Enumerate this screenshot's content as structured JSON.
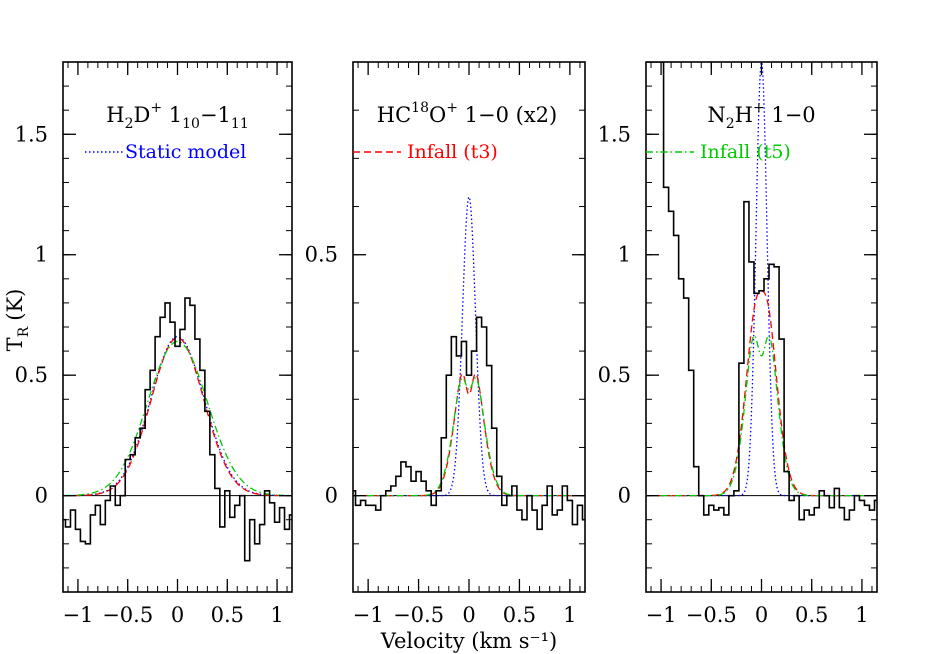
{
  "figure": {
    "xlabel": "Velocity (km s⁻¹)",
    "ylabel": "T",
    "ylabel_sub": "R",
    "ylabel_unit": "(K)"
  },
  "chart_data": [
    {
      "type": "line",
      "title_parts": {
        "a": "H",
        "b": "2",
        "c": "D",
        "d": "+",
        "e": "  1",
        "f": "10",
        "g": "−1",
        "h": "11"
      },
      "legend": {
        "label": "Static model",
        "color": "#0000ff",
        "dash": "dotted"
      },
      "xlim": [
        -1.15,
        1.15
      ],
      "ylim": [
        -0.4,
        1.8
      ],
      "xticks": [
        -1,
        -0.5,
        0,
        0.5,
        1
      ],
      "xtick_labels": [
        "−1",
        "−0.5",
        "0",
        "0.5",
        "1"
      ],
      "yticks": [
        0,
        0.5,
        1,
        1.5
      ],
      "ytick_labels": [
        "0",
        "0.5",
        "1",
        "1.5"
      ],
      "observed": {
        "name": "observed",
        "x": [
          -1.15,
          -1.1,
          -1.05,
          -1.0,
          -0.95,
          -0.9,
          -0.85,
          -0.8,
          -0.75,
          -0.7,
          -0.65,
          -0.6,
          -0.55,
          -0.5,
          -0.45,
          -0.4,
          -0.35,
          -0.3,
          -0.25,
          -0.2,
          -0.15,
          -0.1,
          -0.05,
          0.0,
          0.05,
          0.1,
          0.15,
          0.2,
          0.25,
          0.3,
          0.35,
          0.4,
          0.45,
          0.5,
          0.55,
          0.6,
          0.65,
          0.7,
          0.75,
          0.8,
          0.85,
          0.9,
          0.95,
          1.0,
          1.05,
          1.1,
          1.15
        ],
        "y": [
          -0.1,
          -0.13,
          -0.06,
          -0.14,
          -0.19,
          -0.2,
          -0.08,
          -0.04,
          -0.12,
          -0.02,
          0.04,
          -0.04,
          0.0,
          0.15,
          0.17,
          0.24,
          0.28,
          0.44,
          0.52,
          0.66,
          0.74,
          0.8,
          0.72,
          0.62,
          0.69,
          0.82,
          0.79,
          0.65,
          0.52,
          0.35,
          0.17,
          0.03,
          -0.13,
          0.02,
          -0.09,
          -0.04,
          0.0,
          -0.27,
          -0.1,
          -0.2,
          -0.12,
          0.02,
          -0.03,
          -0.11,
          -0.05,
          -0.14,
          -0.08
        ]
      },
      "series": [
        {
          "name": "Static model",
          "color": "#0000ff",
          "dash": "dotted",
          "model": {
            "kind": "gauss",
            "amp": 0.66,
            "sigma": 0.27,
            "dip": 0
          }
        },
        {
          "name": "Infall (t3)",
          "color": "#ff0000",
          "dash": "dashed",
          "model": {
            "kind": "gauss",
            "amp": 0.655,
            "sigma": 0.265,
            "dip": 0
          }
        },
        {
          "name": "Infall (t5)",
          "color": "#00cc00",
          "dash": "dashdot",
          "model": {
            "kind": "gauss",
            "amp": 0.64,
            "sigma": 0.3,
            "dip": 0
          }
        }
      ]
    },
    {
      "type": "line",
      "title_parts": {
        "a": "HC",
        "b": "18",
        "c": "O",
        "d": "+",
        "e": "  1−0 (x2)"
      },
      "legend": {
        "label": "Infall (t3)",
        "color": "#ff0000",
        "dash": "dashed"
      },
      "xlim": [
        -1.15,
        1.15
      ],
      "ylim": [
        -0.2,
        0.9
      ],
      "xticks": [
        -1,
        -0.5,
        0,
        0.5,
        1
      ],
      "xtick_labels": [
        "−1",
        "−0.5",
        "0",
        "0.5",
        "1"
      ],
      "yticks": [
        0,
        0.5
      ],
      "ytick_labels": [
        "0",
        "0.5"
      ],
      "observed": {
        "name": "observed",
        "x": [
          -1.15,
          -1.1,
          -1.05,
          -1.0,
          -0.95,
          -0.9,
          -0.85,
          -0.8,
          -0.75,
          -0.7,
          -0.65,
          -0.6,
          -0.55,
          -0.5,
          -0.45,
          -0.4,
          -0.35,
          -0.3,
          -0.25,
          -0.2,
          -0.15,
          -0.1,
          -0.05,
          0.0,
          0.05,
          0.1,
          0.15,
          0.2,
          0.25,
          0.3,
          0.35,
          0.4,
          0.45,
          0.5,
          0.55,
          0.6,
          0.65,
          0.7,
          0.75,
          0.8,
          0.85,
          0.9,
          0.95,
          1.0,
          1.05,
          1.1,
          1.15
        ],
        "y": [
          0.01,
          -0.02,
          -0.01,
          -0.02,
          -0.02,
          -0.03,
          0.0,
          0.01,
          0.02,
          0.04,
          0.07,
          0.06,
          0.03,
          0.05,
          0.03,
          0.01,
          -0.02,
          0.01,
          0.12,
          0.25,
          0.33,
          0.29,
          0.32,
          0.25,
          0.3,
          0.37,
          0.35,
          0.27,
          0.14,
          0.04,
          -0.02,
          0.0,
          0.02,
          -0.03,
          -0.05,
          0.0,
          -0.03,
          -0.07,
          -0.02,
          0.02,
          -0.04,
          -0.03,
          0.02,
          -0.01,
          -0.06,
          -0.02,
          -0.05
        ]
      },
      "series": [
        {
          "name": "Static model",
          "color": "#0000ff",
          "dash": "dotted",
          "model": {
            "kind": "gauss",
            "amp": 0.62,
            "sigma": 0.065,
            "dip": 0
          }
        },
        {
          "name": "Infall (t3)",
          "color": "#ff0000",
          "dash": "dashed",
          "model": {
            "kind": "double",
            "amp": 0.33,
            "sigma": 0.12,
            "dip": 0.12,
            "dipsig": 0.04
          }
        },
        {
          "name": "Infall (t5)",
          "color": "#00cc00",
          "dash": "dashdot",
          "model": {
            "kind": "double",
            "amp": 0.32,
            "sigma": 0.125,
            "dip": 0.1,
            "dipsig": 0.045
          }
        }
      ]
    },
    {
      "type": "line",
      "title_parts": {
        "a": "N",
        "b": "2",
        "c": "H",
        "d": "+",
        "e": "  1−0"
      },
      "legend": {
        "label": "Infall (t5)",
        "color": "#00cc00",
        "dash": "dashdot"
      },
      "xlim": [
        -1.15,
        1.15
      ],
      "ylim": [
        -0.4,
        1.8
      ],
      "xticks": [
        -1,
        -0.5,
        0,
        0.5,
        1
      ],
      "xtick_labels": [
        "−1",
        "−0.5",
        "0",
        "0.5",
        "1"
      ],
      "yticks": [
        0,
        0.5,
        1,
        1.5
      ],
      "ytick_labels": [
        "0",
        "0.5",
        "1",
        "1.5"
      ],
      "observed": {
        "name": "observed",
        "x": [
          -1.15,
          -1.1,
          -1.05,
          -1.0,
          -0.95,
          -0.9,
          -0.85,
          -0.8,
          -0.75,
          -0.7,
          -0.65,
          -0.6,
          -0.55,
          -0.5,
          -0.45,
          -0.4,
          -0.35,
          -0.3,
          -0.25,
          -0.2,
          -0.15,
          -0.1,
          -0.05,
          0.0,
          0.05,
          0.1,
          0.15,
          0.2,
          0.25,
          0.3,
          0.35,
          0.4,
          0.45,
          0.5,
          0.55,
          0.6,
          0.65,
          0.7,
          0.75,
          0.8,
          0.85,
          0.9,
          0.95,
          1.0,
          1.05,
          1.1,
          1.15
        ],
        "y": [
          1.8,
          1.8,
          1.8,
          1.8,
          1.28,
          1.18,
          1.08,
          0.9,
          0.82,
          0.52,
          0.12,
          0.0,
          -0.08,
          -0.04,
          -0.06,
          -0.05,
          -0.08,
          0.0,
          0.02,
          0.55,
          1.22,
          0.97,
          0.84,
          0.85,
          0.9,
          0.96,
          0.95,
          0.65,
          0.1,
          -0.02,
          0.0,
          -0.1,
          -0.06,
          -0.08,
          -0.05,
          0.02,
          0.0,
          -0.05,
          0.03,
          -0.05,
          -0.1,
          -0.06,
          0.0,
          -0.02,
          -0.04,
          -0.06,
          -0.02
        ]
      },
      "series": [
        {
          "name": "Static model",
          "color": "#0000ff",
          "dash": "dotted",
          "model": {
            "kind": "gauss",
            "amp": 1.8,
            "sigma": 0.055,
            "dip": 0
          }
        },
        {
          "name": "Infall (t3)",
          "color": "#ff0000",
          "dash": "dashed",
          "model": {
            "kind": "double",
            "amp": 0.95,
            "sigma": 0.13,
            "dip": 0.1,
            "dipsig": 0.05
          }
        },
        {
          "name": "Infall (t5)",
          "color": "#00cc00",
          "dash": "dashdot",
          "model": {
            "kind": "double",
            "amp": 0.93,
            "sigma": 0.125,
            "dip": 0.35,
            "dipsig": 0.05
          }
        }
      ]
    }
  ]
}
